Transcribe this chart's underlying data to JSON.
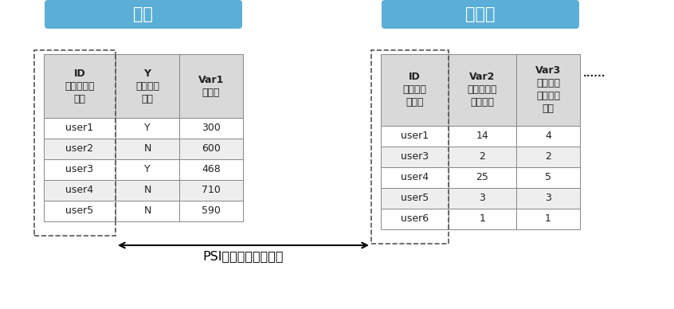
{
  "bank_title": "银行",
  "operator_title": "运营商",
  "bank_headers": [
    "ID\n客户唯一识\n别号",
    "Y\n是否逾期\n标签",
    "Var1\n信用分"
  ],
  "bank_rows": [
    [
      "user1",
      "Y",
      "300"
    ],
    [
      "user2",
      "N",
      "600"
    ],
    [
      "user3",
      "Y",
      "468"
    ],
    [
      "user4",
      "N",
      "710"
    ],
    [
      "user5",
      "N",
      "590"
    ]
  ],
  "operator_headers": [
    "ID\n客户唯一\n识别号",
    "Var2\n近七天通话\n平均时长",
    "Var3\n近三个月\n接入电话\n次数"
  ],
  "operator_rows": [
    [
      "user1",
      "14",
      "4"
    ],
    [
      "user3",
      "2",
      "2"
    ],
    [
      "user4",
      "25",
      "5"
    ],
    [
      "user5",
      "3",
      "3"
    ],
    [
      "user6",
      "1",
      "1"
    ]
  ],
  "arrow_label": "PSI技术匹配交集客户",
  "header_bg": "#d9d9d9",
  "row_bg_even": "#ffffff",
  "row_bg_odd": "#eeeeee",
  "title_box_color": "#5bafd6",
  "title_text_color": "#ffffff",
  "dashed_color": "#555555",
  "text_color": "#222222",
  "dots_text": "......"
}
